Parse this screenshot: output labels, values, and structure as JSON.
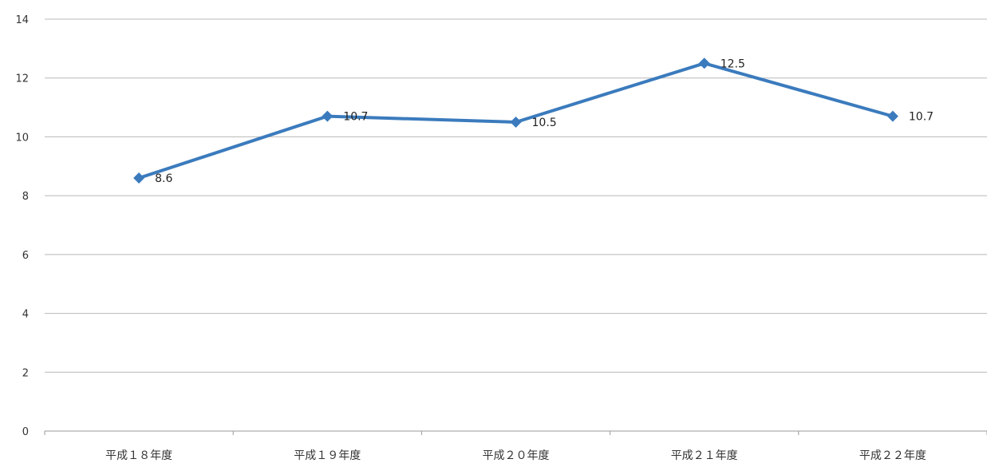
{
  "chart_data": {
    "type": "line",
    "title": "",
    "xlabel": "",
    "ylabel": "",
    "categories": [
      "平成１８年度",
      "平成１９年度",
      "平成２０年度",
      "平成２１年度",
      "平成２２年度"
    ],
    "series": [
      {
        "values": [
          8.6,
          10.7,
          10.5,
          12.5,
          10.7
        ],
        "data_labels": [
          "8.6",
          "10.7",
          "10.5",
          "12.5",
          "10.7"
        ]
      }
    ],
    "ylim": [
      0,
      14
    ],
    "yticks": [
      0,
      2,
      4,
      6,
      8,
      10,
      12,
      14
    ],
    "ytick_labels": [
      "0",
      "2",
      "4",
      "6",
      "8",
      "10",
      "12",
      "14"
    ],
    "grid": true,
    "legend": "none",
    "colors": {
      "series": "#3b7bbd",
      "grid": "#b8b8b8"
    },
    "marker": "diamond"
  }
}
